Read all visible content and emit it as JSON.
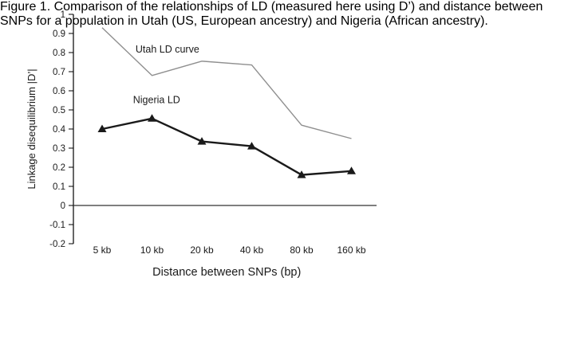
{
  "chart_data": {
    "type": "line",
    "title": "",
    "xlabel": "Distance between SNPs (bp)",
    "ylabel": "Linkage disequilibrium |D’|",
    "categories": [
      "5 kb",
      "10 kb",
      "20 kb",
      "40 kb",
      "80 kb",
      "160 kb"
    ],
    "series": [
      {
        "name": "Utah LD curve",
        "values": [
          0.93,
          0.68,
          0.755,
          0.735,
          0.42,
          0.35
        ],
        "color": "#8f8f8f",
        "line_width": 1.4,
        "marker": "none"
      },
      {
        "name": "Nigeria LD",
        "values": [
          0.4,
          0.455,
          0.335,
          0.31,
          0.16,
          0.18
        ],
        "color": "#1a1a1a",
        "line_width": 2.4,
        "marker": "triangle"
      }
    ],
    "ylim": [
      -0.2,
      1
    ],
    "yticks": [
      "1",
      "0.9",
      "0.8",
      "0.7",
      "0.6",
      "0.5",
      "0.4",
      "0.3",
      "0.2",
      "0.1",
      "0",
      "-0.1",
      "-0.2"
    ],
    "zero_line": true,
    "grid": false,
    "legend_position": "in-plot-annotations",
    "annotations": [
      {
        "text": "Utah LD curve",
        "x_index": 0.67,
        "y": 0.8
      },
      {
        "text": "Nigeria LD",
        "x_index": 0.62,
        "y": 0.535
      }
    ]
  },
  "caption": {
    "lines": [
      "Figure 1. Comparison of the relationships of LD (measured here using D’) and distance between",
      "SNPs for a population in Utah (US, European ancestry) and Nigeria (African ancestry)."
    ]
  }
}
